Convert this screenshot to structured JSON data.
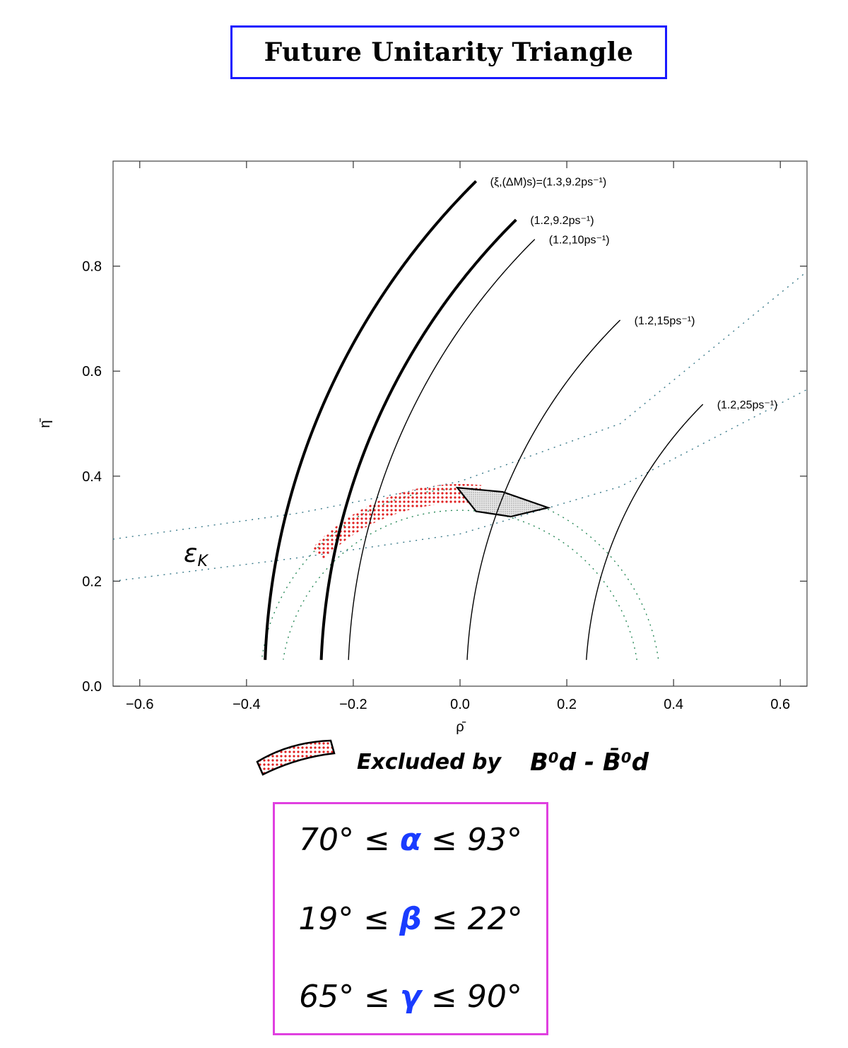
{
  "title": "Future Unitarity Triangle",
  "chart_data": {
    "type": "line",
    "title": "",
    "xlabel": "ρ̄",
    "ylabel": "η̄",
    "xlim": [
      -0.65,
      0.65
    ],
    "ylim": [
      0,
      1.0
    ],
    "x_ticks": [
      -0.6,
      -0.4,
      -0.2,
      0.0,
      0.2,
      0.4,
      0.6
    ],
    "x_tick_labels": [
      "−0.6",
      "−0.4",
      "−0.2",
      "0.0",
      "0.2",
      "0.4",
      "0.6"
    ],
    "y_ticks": [
      0.0,
      0.2,
      0.4,
      0.6,
      0.8
    ],
    "y_tick_labels": [
      "0.0",
      "0.2",
      "0.4",
      "0.6",
      "0.8"
    ],
    "curves": [
      {
        "label": "(ξ,(ΔM)s)=(1.3,9.2ps⁻¹)",
        "style": "thick",
        "center": [
          1,
          0
        ],
        "radius": 1.366,
        "x_end": 0.03
      },
      {
        "label": "(1.2,9.2ps⁻¹)",
        "style": "thick",
        "center": [
          1,
          0
        ],
        "radius": 1.261,
        "x_end": 0.105
      },
      {
        "label": "(1.2,10ps⁻¹)",
        "style": "thin",
        "center": [
          1,
          0
        ],
        "radius": 1.21,
        "x_end": 0.14
      },
      {
        "label": "(1.2,15ps⁻¹)",
        "style": "thin",
        "center": [
          1,
          0
        ],
        "radius": 0.988,
        "x_end": 0.3
      },
      {
        "label": "(1.2,25ps⁻¹)",
        "style": "thin",
        "center": [
          1,
          0
        ],
        "radius": 0.765,
        "x_end": 0.455
      }
    ],
    "vub_band": {
      "center": [
        0,
        0
      ],
      "r_inner": 0.335,
      "r_outer": 0.375
    },
    "epsilon_k_band": {
      "upper": [
        [
          -0.65,
          0.28
        ],
        [
          -0.3,
          0.33
        ],
        [
          0.0,
          0.39
        ],
        [
          0.3,
          0.5
        ],
        [
          0.65,
          0.79
        ]
      ],
      "lower": [
        [
          -0.65,
          0.2
        ],
        [
          -0.3,
          0.245
        ],
        [
          0.0,
          0.29
        ],
        [
          0.3,
          0.38
        ],
        [
          0.65,
          0.565
        ]
      ]
    },
    "allowed_region": [
      [
        -0.005,
        0.378
      ],
      [
        0.08,
        0.37
      ],
      [
        0.165,
        0.34
      ],
      [
        0.095,
        0.323
      ],
      [
        0.03,
        0.333
      ]
    ],
    "excluded_region": {
      "x_from": -0.28,
      "x_to": 0.04,
      "color": "#e02020"
    }
  },
  "annotations": {
    "epsilon_k": "ε",
    "epsilon_k_sub": "K",
    "legend_excluded": "Excluded by",
    "legend_excluded_math": "B⁰d - B̄⁰d"
  },
  "angles": [
    {
      "lower": "70°",
      "symbol": "α",
      "upper": "93°"
    },
    {
      "lower": "19°",
      "symbol": "β",
      "upper": "22°"
    },
    {
      "lower": "65°",
      "symbol": "γ",
      "upper": "90°"
    }
  ],
  "relation": "≤",
  "colors": {
    "title_border": "#1a1aff",
    "angles_border": "#e040e0",
    "greek": "#1a3cff",
    "excluded": "#e02020",
    "allowed": "#c8c8c8"
  }
}
